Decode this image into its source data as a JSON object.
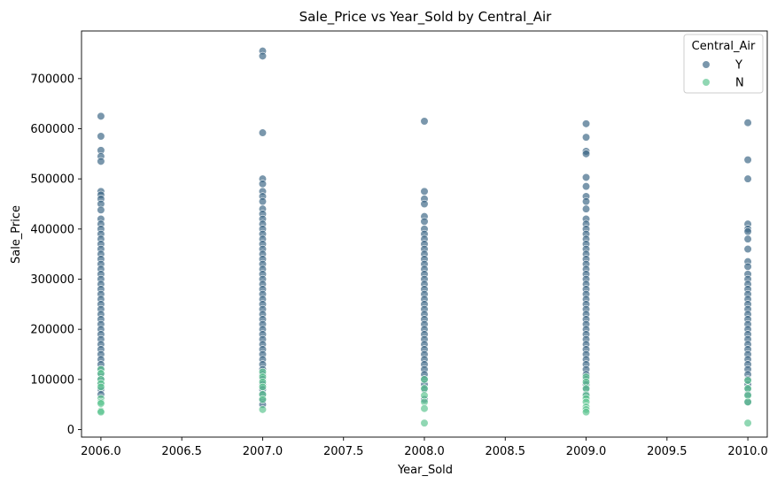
{
  "chart_data": {
    "type": "scatter",
    "title": "Sale_Price vs Year_Sold by Central_Air",
    "xlabel": "Year_Sold",
    "ylabel": "Sale_Price",
    "xlim": [
      2005.88,
      2010.12
    ],
    "ylim": [
      -15000,
      795000
    ],
    "xticks": [
      2006.0,
      2006.5,
      2007.0,
      2007.5,
      2008.0,
      2008.5,
      2009.0,
      2009.5,
      2010.0
    ],
    "xtick_labels": [
      "2006.0",
      "2006.5",
      "2007.0",
      "2007.5",
      "2008.0",
      "2008.5",
      "2009.0",
      "2009.5",
      "2010.0"
    ],
    "yticks": [
      0,
      100000,
      200000,
      300000,
      400000,
      500000,
      600000,
      700000
    ],
    "ytick_labels": [
      "0",
      "100000",
      "200000",
      "300000",
      "400000",
      "500000",
      "600000",
      "700000"
    ],
    "grid": false,
    "legend": {
      "title": "Central_Air",
      "placement": "top-right"
    },
    "series": [
      {
        "name": "Y",
        "color": "#3b6585",
        "points": [
          [
            2006,
            625000
          ],
          [
            2006,
            585000
          ],
          [
            2006,
            557000
          ],
          [
            2006,
            545000
          ],
          [
            2006,
            535000
          ],
          [
            2006,
            475000
          ],
          [
            2006,
            468000
          ],
          [
            2006,
            460000
          ],
          [
            2006,
            450000
          ],
          [
            2006,
            438000
          ],
          [
            2006,
            420000
          ],
          [
            2006,
            410000
          ],
          [
            2006,
            400000
          ],
          [
            2006,
            390000
          ],
          [
            2006,
            380000
          ],
          [
            2006,
            370000
          ],
          [
            2006,
            360000
          ],
          [
            2006,
            350000
          ],
          [
            2006,
            340000
          ],
          [
            2006,
            330000
          ],
          [
            2006,
            320000
          ],
          [
            2006,
            310000
          ],
          [
            2006,
            300000
          ],
          [
            2006,
            290000
          ],
          [
            2006,
            280000
          ],
          [
            2006,
            270000
          ],
          [
            2006,
            260000
          ],
          [
            2006,
            250000
          ],
          [
            2006,
            240000
          ],
          [
            2006,
            230000
          ],
          [
            2006,
            220000
          ],
          [
            2006,
            210000
          ],
          [
            2006,
            200000
          ],
          [
            2006,
            190000
          ],
          [
            2006,
            180000
          ],
          [
            2006,
            170000
          ],
          [
            2006,
            160000
          ],
          [
            2006,
            150000
          ],
          [
            2006,
            140000
          ],
          [
            2006,
            130000
          ],
          [
            2006,
            120000
          ],
          [
            2006,
            110000
          ],
          [
            2006,
            100000
          ],
          [
            2006,
            90000
          ],
          [
            2006,
            80000
          ],
          [
            2006,
            70000
          ],
          [
            2007,
            755000
          ],
          [
            2007,
            745000
          ],
          [
            2007,
            592000
          ],
          [
            2007,
            500000
          ],
          [
            2007,
            490000
          ],
          [
            2007,
            475000
          ],
          [
            2007,
            465000
          ],
          [
            2007,
            455000
          ],
          [
            2007,
            440000
          ],
          [
            2007,
            430000
          ],
          [
            2007,
            420000
          ],
          [
            2007,
            410000
          ],
          [
            2007,
            400000
          ],
          [
            2007,
            390000
          ],
          [
            2007,
            380000
          ],
          [
            2007,
            370000
          ],
          [
            2007,
            360000
          ],
          [
            2007,
            350000
          ],
          [
            2007,
            340000
          ],
          [
            2007,
            330000
          ],
          [
            2007,
            320000
          ],
          [
            2007,
            310000
          ],
          [
            2007,
            300000
          ],
          [
            2007,
            290000
          ],
          [
            2007,
            280000
          ],
          [
            2007,
            270000
          ],
          [
            2007,
            260000
          ],
          [
            2007,
            250000
          ],
          [
            2007,
            240000
          ],
          [
            2007,
            230000
          ],
          [
            2007,
            220000
          ],
          [
            2007,
            210000
          ],
          [
            2007,
            200000
          ],
          [
            2007,
            190000
          ],
          [
            2007,
            180000
          ],
          [
            2007,
            170000
          ],
          [
            2007,
            160000
          ],
          [
            2007,
            150000
          ],
          [
            2007,
            140000
          ],
          [
            2007,
            130000
          ],
          [
            2007,
            120000
          ],
          [
            2007,
            110000
          ],
          [
            2007,
            100000
          ],
          [
            2007,
            90000
          ],
          [
            2007,
            80000
          ],
          [
            2007,
            70000
          ],
          [
            2007,
            60000
          ],
          [
            2007,
            50000
          ],
          [
            2008,
            615000
          ],
          [
            2008,
            475000
          ],
          [
            2008,
            460000
          ],
          [
            2008,
            450000
          ],
          [
            2008,
            425000
          ],
          [
            2008,
            415000
          ],
          [
            2008,
            400000
          ],
          [
            2008,
            390000
          ],
          [
            2008,
            380000
          ],
          [
            2008,
            370000
          ],
          [
            2008,
            360000
          ],
          [
            2008,
            350000
          ],
          [
            2008,
            340000
          ],
          [
            2008,
            330000
          ],
          [
            2008,
            320000
          ],
          [
            2008,
            310000
          ],
          [
            2008,
            300000
          ],
          [
            2008,
            290000
          ],
          [
            2008,
            280000
          ],
          [
            2008,
            270000
          ],
          [
            2008,
            260000
          ],
          [
            2008,
            250000
          ],
          [
            2008,
            240000
          ],
          [
            2008,
            230000
          ],
          [
            2008,
            220000
          ],
          [
            2008,
            210000
          ],
          [
            2008,
            200000
          ],
          [
            2008,
            190000
          ],
          [
            2008,
            180000
          ],
          [
            2008,
            170000
          ],
          [
            2008,
            160000
          ],
          [
            2008,
            150000
          ],
          [
            2008,
            140000
          ],
          [
            2008,
            130000
          ],
          [
            2008,
            120000
          ],
          [
            2008,
            110000
          ],
          [
            2008,
            100000
          ],
          [
            2008,
            90000
          ],
          [
            2008,
            80000
          ],
          [
            2008,
            60000
          ],
          [
            2009,
            610000
          ],
          [
            2009,
            583000
          ],
          [
            2009,
            555000
          ],
          [
            2009,
            550000
          ],
          [
            2009,
            503000
          ],
          [
            2009,
            485000
          ],
          [
            2009,
            465000
          ],
          [
            2009,
            455000
          ],
          [
            2009,
            440000
          ],
          [
            2009,
            420000
          ],
          [
            2009,
            410000
          ],
          [
            2009,
            400000
          ],
          [
            2009,
            390000
          ],
          [
            2009,
            380000
          ],
          [
            2009,
            370000
          ],
          [
            2009,
            360000
          ],
          [
            2009,
            350000
          ],
          [
            2009,
            340000
          ],
          [
            2009,
            330000
          ],
          [
            2009,
            320000
          ],
          [
            2009,
            310000
          ],
          [
            2009,
            300000
          ],
          [
            2009,
            290000
          ],
          [
            2009,
            280000
          ],
          [
            2009,
            270000
          ],
          [
            2009,
            260000
          ],
          [
            2009,
            250000
          ],
          [
            2009,
            240000
          ],
          [
            2009,
            230000
          ],
          [
            2009,
            220000
          ],
          [
            2009,
            210000
          ],
          [
            2009,
            200000
          ],
          [
            2009,
            190000
          ],
          [
            2009,
            180000
          ],
          [
            2009,
            170000
          ],
          [
            2009,
            160000
          ],
          [
            2009,
            150000
          ],
          [
            2009,
            140000
          ],
          [
            2009,
            130000
          ],
          [
            2009,
            120000
          ],
          [
            2009,
            110000
          ],
          [
            2009,
            100000
          ],
          [
            2009,
            90000
          ],
          [
            2009,
            80000
          ],
          [
            2009,
            70000
          ],
          [
            2010,
            612000
          ],
          [
            2010,
            538000
          ],
          [
            2010,
            500000
          ],
          [
            2010,
            410000
          ],
          [
            2010,
            400000
          ],
          [
            2010,
            395000
          ],
          [
            2010,
            380000
          ],
          [
            2010,
            360000
          ],
          [
            2010,
            335000
          ],
          [
            2010,
            325000
          ],
          [
            2010,
            310000
          ],
          [
            2010,
            300000
          ],
          [
            2010,
            290000
          ],
          [
            2010,
            280000
          ],
          [
            2010,
            270000
          ],
          [
            2010,
            260000
          ],
          [
            2010,
            250000
          ],
          [
            2010,
            240000
          ],
          [
            2010,
            230000
          ],
          [
            2010,
            220000
          ],
          [
            2010,
            210000
          ],
          [
            2010,
            200000
          ],
          [
            2010,
            190000
          ],
          [
            2010,
            180000
          ],
          [
            2010,
            170000
          ],
          [
            2010,
            160000
          ],
          [
            2010,
            150000
          ],
          [
            2010,
            140000
          ],
          [
            2010,
            130000
          ],
          [
            2010,
            120000
          ],
          [
            2010,
            110000
          ],
          [
            2010,
            100000
          ],
          [
            2010,
            90000
          ],
          [
            2010,
            80000
          ],
          [
            2010,
            70000
          ],
          [
            2010,
            55000
          ]
        ]
      },
      {
        "name": "N",
        "color": "#5cc48f",
        "points": [
          [
            2006,
            120000
          ],
          [
            2006,
            112000
          ],
          [
            2006,
            100000
          ],
          [
            2006,
            92000
          ],
          [
            2006,
            85000
          ],
          [
            2006,
            62000
          ],
          [
            2006,
            55000
          ],
          [
            2006,
            52000
          ],
          [
            2006,
            37000
          ],
          [
            2006,
            35000
          ],
          [
            2007,
            115000
          ],
          [
            2007,
            105000
          ],
          [
            2007,
            95000
          ],
          [
            2007,
            85000
          ],
          [
            2007,
            70000
          ],
          [
            2007,
            60000
          ],
          [
            2007,
            40000
          ],
          [
            2008,
            100000
          ],
          [
            2008,
            82000
          ],
          [
            2008,
            68000
          ],
          [
            2008,
            55000
          ],
          [
            2008,
            42000
          ],
          [
            2008,
            13000
          ],
          [
            2009,
            105000
          ],
          [
            2009,
            95000
          ],
          [
            2009,
            82000
          ],
          [
            2009,
            68000
          ],
          [
            2009,
            62000
          ],
          [
            2009,
            55000
          ],
          [
            2009,
            45000
          ],
          [
            2009,
            40000
          ],
          [
            2009,
            35000
          ],
          [
            2010,
            98000
          ],
          [
            2010,
            82000
          ],
          [
            2010,
            68000
          ],
          [
            2010,
            55000
          ],
          [
            2010,
            13000
          ]
        ]
      }
    ]
  }
}
